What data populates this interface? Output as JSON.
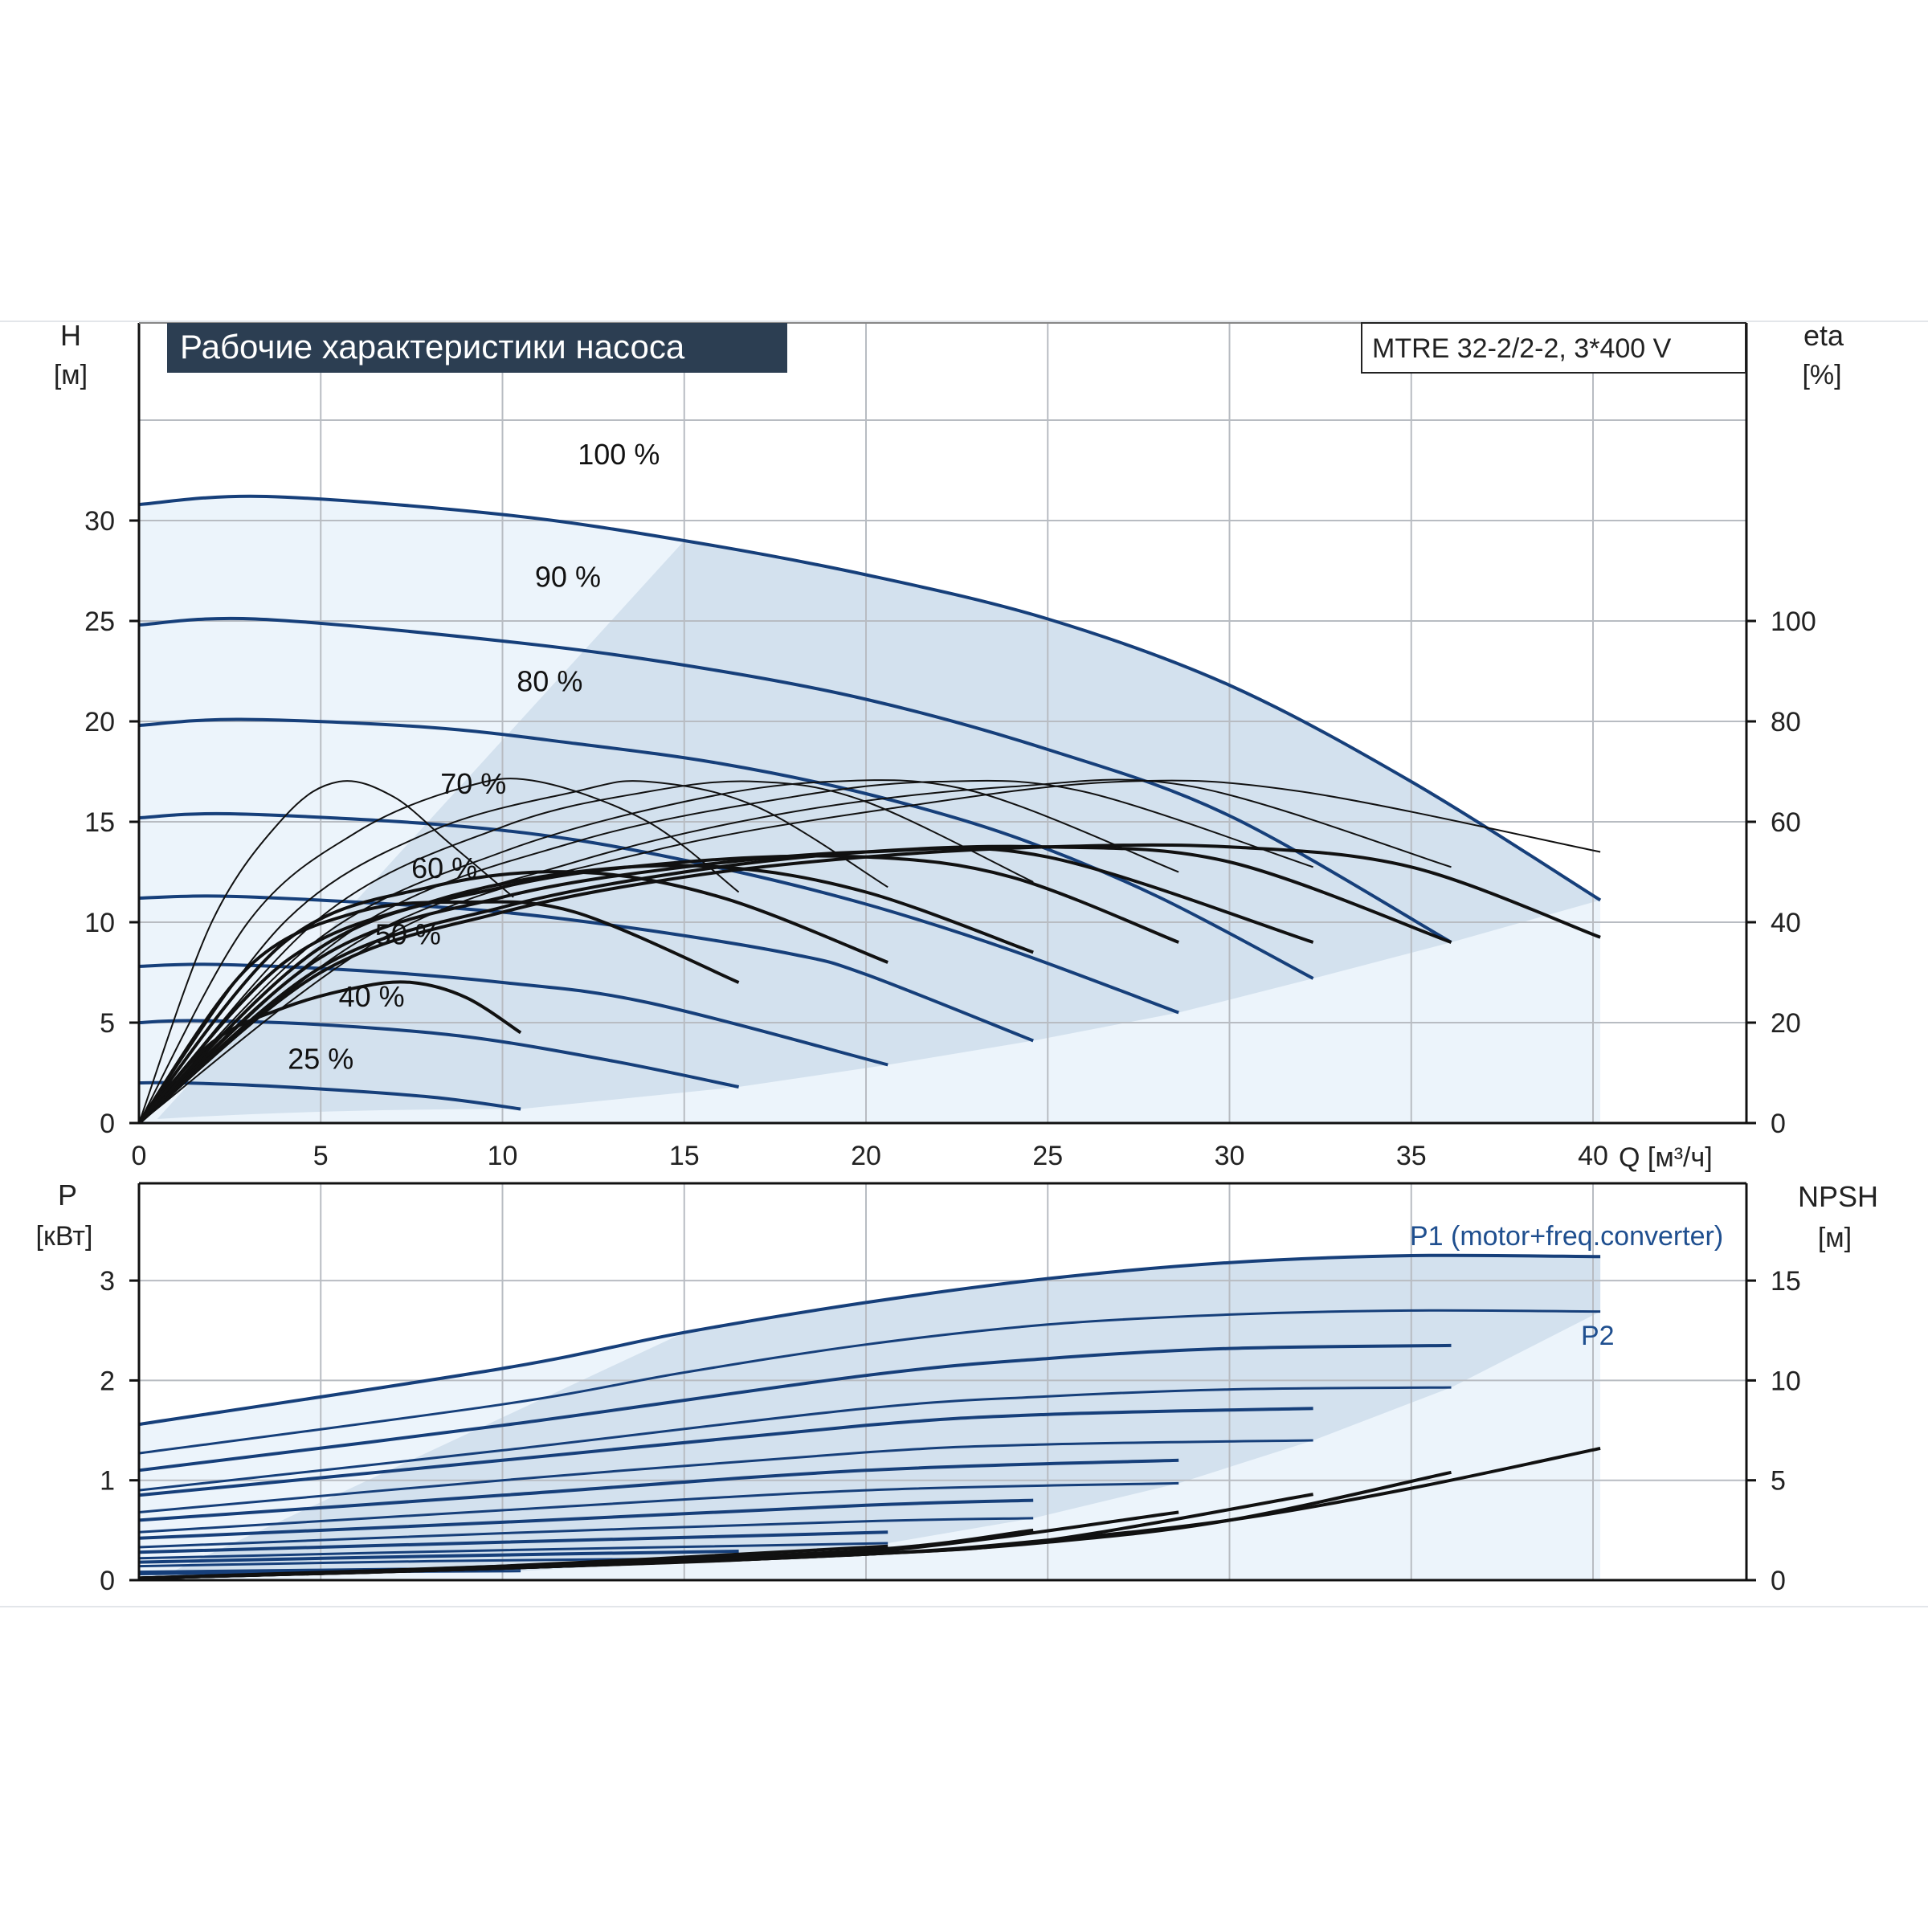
{
  "title": "Рабочие характеристики насоса",
  "model": "MTRE 32-2/2-2, 3*400 V",
  "colors": {
    "curve_blue": "#163f7a",
    "envelope_fill": "#d3e1ee",
    "light_fill": "#ecf4fb",
    "title_bg": "#2c3e52",
    "grid": "#b8bcc2",
    "efficiency": "#111111"
  },
  "chart_data": [
    {
      "name": "head",
      "type": "line",
      "x_label_right": "Q [м³/ч]",
      "y_left_label": [
        "H",
        "[м]"
      ],
      "y_right_label": [
        "eta",
        "[%]"
      ],
      "xlim": [
        0,
        44
      ],
      "ylim_left": [
        0,
        36
      ],
      "ylim_right": [
        0,
        140
      ],
      "x_ticks": [
        0,
        5,
        10,
        15,
        20,
        25,
        30,
        35,
        40
      ],
      "x_tick_labels": [
        "0",
        "5",
        "10",
        "15",
        "20",
        "25",
        "30",
        "35",
        "40"
      ],
      "y_left_ticks": [
        0,
        5,
        10,
        15,
        20,
        25,
        30
      ],
      "y_left_tick_labels": [
        "0",
        "5",
        "10",
        "15",
        "20",
        "25",
        "30"
      ],
      "y_right_ticks": [
        0,
        20,
        40,
        60,
        80,
        100
      ],
      "y_right_tick_labels": [
        "0",
        "20",
        "40",
        "60",
        "80",
        "100"
      ],
      "speed_labels": [
        "100 %",
        "90 %",
        "80 %",
        "70 %",
        "60 %",
        "50 %",
        "40 %",
        "25 %"
      ],
      "head_series": [
        {
          "speed": 100,
          "label": "100 %",
          "x": [
            0,
            3.5,
            10,
            15,
            20,
            25,
            30,
            35,
            40.2
          ],
          "y": [
            30.8,
            31.2,
            30.3,
            29.0,
            27.3,
            25.1,
            21.8,
            17.0,
            11.1
          ]
        },
        {
          "speed": 90,
          "label": "90 %",
          "x": [
            0,
            3.2,
            10,
            15,
            20,
            25,
            30,
            36.1
          ],
          "y": [
            24.8,
            25.1,
            24.0,
            22.8,
            21.1,
            18.6,
            15.3,
            9.0
          ]
        },
        {
          "speed": 80,
          "label": "80 %",
          "x": [
            0,
            2.8,
            8,
            12,
            16,
            20,
            24,
            28,
            32.3
          ],
          "y": [
            19.8,
            20.1,
            19.7,
            18.9,
            17.9,
            16.4,
            14.3,
            11.3,
            7.2
          ]
        },
        {
          "speed": 70,
          "label": "70 %",
          "x": [
            0,
            2.5,
            8,
            12,
            16,
            20,
            24,
            28.6
          ],
          "y": [
            15.2,
            15.4,
            14.9,
            14.1,
            12.7,
            10.9,
            8.6,
            5.5
          ]
        },
        {
          "speed": 60,
          "label": "60 %",
          "x": [
            0,
            2.2,
            6,
            10,
            14,
            18,
            20,
            24.6
          ],
          "y": [
            11.2,
            11.3,
            11.0,
            10.5,
            9.6,
            8.4,
            7.4,
            4.1
          ]
        },
        {
          "speed": 50,
          "label": "50 %",
          "x": [
            0,
            2.0,
            6,
            10,
            14,
            20.6
          ],
          "y": [
            7.8,
            7.9,
            7.6,
            7.0,
            6.0,
            2.9
          ]
        },
        {
          "speed": 40,
          "label": "40 %",
          "x": [
            0,
            1.5,
            5,
            9,
            13,
            16.5
          ],
          "y": [
            5.0,
            5.1,
            4.9,
            4.3,
            3.1,
            1.8
          ]
        },
        {
          "speed": 25,
          "label": "25 %",
          "x": [
            0,
            1.2,
            4,
            8,
            10.5
          ],
          "y": [
            2.0,
            2.0,
            1.8,
            1.3,
            0.7
          ]
        }
      ],
      "efficiency_series": [
        {
          "speed": 100,
          "x": [
            0,
            5,
            10,
            15,
            20,
            25,
            30,
            35,
            40.2
          ],
          "y": [
            0,
            30,
            42,
            49,
            53,
            55,
            55,
            51,
            37
          ]
        },
        {
          "speed": 90,
          "x": [
            0,
            5,
            10,
            15,
            20,
            25,
            30,
            36.1
          ],
          "y": [
            0,
            31,
            43,
            50,
            54,
            55,
            52,
            36
          ]
        },
        {
          "speed": 80,
          "x": [
            0,
            5,
            10,
            15,
            20,
            25,
            32.3
          ],
          "y": [
            0,
            33,
            45,
            51,
            54,
            53,
            36
          ]
        },
        {
          "speed": 70,
          "x": [
            0,
            5,
            10,
            15,
            20,
            24,
            28.6
          ],
          "y": [
            0,
            35,
            47,
            52,
            53,
            49,
            36
          ]
        },
        {
          "speed": 60,
          "x": [
            0,
            4,
            8,
            12,
            16,
            20,
            24.6
          ],
          "y": [
            0,
            32,
            44,
            50,
            51,
            46,
            34
          ]
        },
        {
          "speed": 50,
          "x": [
            0,
            4,
            8,
            12,
            16,
            20.6
          ],
          "y": [
            0,
            36,
            47,
            50,
            45,
            32
          ]
        },
        {
          "speed": 40,
          "x": [
            0,
            3,
            6,
            9,
            12,
            16.5
          ],
          "y": [
            0,
            31,
            42,
            44,
            42,
            28
          ]
        },
        {
          "speed": 25,
          "x": [
            0,
            2,
            4,
            6,
            7.5,
            9,
            10.5
          ],
          "y": [
            0,
            16,
            23,
            27,
            28,
            25,
            18
          ]
        }
      ],
      "efficiency_thin_series": [
        {
          "x": [
            0,
            2,
            4,
            5.5,
            7,
            8.5,
            10.3
          ],
          "y": [
            0,
            40,
            61,
            68,
            65,
            56,
            45
          ]
        },
        {
          "x": [
            0,
            3,
            6,
            9,
            11,
            14,
            16.5
          ],
          "y": [
            0,
            40,
            58,
            67,
            68,
            60,
            46
          ]
        },
        {
          "x": [
            0,
            4,
            8,
            12,
            14,
            17,
            20.6
          ],
          "y": [
            0,
            40,
            58,
            66,
            68,
            63,
            47
          ]
        },
        {
          "x": [
            0,
            5,
            10,
            14,
            17,
            20,
            24.6
          ],
          "y": [
            0,
            41,
            59,
            66,
            68,
            64,
            48
          ]
        },
        {
          "x": [
            0,
            5,
            10,
            15,
            19,
            23,
            28.6
          ],
          "y": [
            0,
            37,
            54,
            64,
            68,
            66,
            50
          ]
        },
        {
          "x": [
            0,
            6,
            12,
            18,
            22,
            26,
            32.3
          ],
          "y": [
            0,
            39,
            56,
            65,
            68,
            66,
            51
          ]
        },
        {
          "x": [
            0,
            6,
            12,
            18,
            24,
            29,
            36.1
          ],
          "y": [
            0,
            36,
            52,
            62,
            67,
            67,
            51
          ]
        },
        {
          "x": [
            0,
            7,
            14,
            21,
            27,
            32,
            40.2
          ],
          "y": [
            0,
            38,
            54,
            63,
            68,
            66,
            54
          ]
        }
      ]
    },
    {
      "name": "power",
      "type": "line",
      "y_left_label": [
        "P",
        "[кВт]"
      ],
      "y_right_label": [
        "NPSH",
        "[м]"
      ],
      "series_labels": [
        "P1 (motor+freq.converter)",
        "P2"
      ],
      "xlim": [
        0,
        44
      ],
      "ylim_left": [
        0,
        3.5
      ],
      "ylim_right": [
        0,
        17.5
      ],
      "x_ticks": [
        0,
        5,
        10,
        15,
        20,
        25,
        30,
        35,
        40
      ],
      "y_left_ticks": [
        0,
        1,
        2,
        3
      ],
      "y_left_tick_labels": [
        "0",
        "1",
        "2",
        "3"
      ],
      "y_right_ticks": [
        0,
        5,
        10,
        15
      ],
      "y_right_tick_labels": [
        "0",
        "5",
        "10",
        "15"
      ],
      "p1_series": [
        {
          "speed": 100,
          "x": [
            0,
            10,
            15,
            20,
            25,
            30,
            35,
            40.2
          ],
          "y": [
            1.56,
            2.12,
            2.48,
            2.78,
            3.02,
            3.18,
            3.25,
            3.24
          ]
        },
        {
          "speed": 90,
          "x": [
            0,
            10,
            20,
            25,
            30,
            36.1
          ],
          "y": [
            1.1,
            1.55,
            2.05,
            2.22,
            2.32,
            2.35
          ]
        },
        {
          "speed": 80,
          "x": [
            0,
            10,
            20,
            25,
            32.3
          ],
          "y": [
            0.85,
            1.2,
            1.55,
            1.66,
            1.72
          ]
        },
        {
          "speed": 70,
          "x": [
            0,
            10,
            20,
            28.6
          ],
          "y": [
            0.6,
            0.85,
            1.1,
            1.2
          ]
        },
        {
          "speed": 60,
          "x": [
            0,
            10,
            20,
            24.6
          ],
          "y": [
            0.42,
            0.58,
            0.75,
            0.8
          ]
        },
        {
          "speed": 50,
          "x": [
            0,
            10,
            20.6
          ],
          "y": [
            0.28,
            0.38,
            0.48
          ]
        },
        {
          "speed": 40,
          "x": [
            0,
            8,
            16.5
          ],
          "y": [
            0.18,
            0.24,
            0.29
          ]
        },
        {
          "speed": 25,
          "x": [
            0,
            5,
            10.5
          ],
          "y": [
            0.08,
            0.1,
            0.12
          ]
        }
      ],
      "p2_series": [
        {
          "speed": 100,
          "x": [
            0,
            10,
            15,
            20,
            25,
            30,
            35,
            40.2
          ],
          "y": [
            1.27,
            1.76,
            2.08,
            2.36,
            2.56,
            2.66,
            2.7,
            2.69
          ]
        },
        {
          "speed": 90,
          "x": [
            0,
            10,
            20,
            25,
            30,
            36.1
          ],
          "y": [
            0.9,
            1.3,
            1.72,
            1.84,
            1.91,
            1.93
          ]
        },
        {
          "speed": 80,
          "x": [
            0,
            10,
            20,
            25,
            32.3
          ],
          "y": [
            0.68,
            1.0,
            1.28,
            1.36,
            1.4
          ]
        },
        {
          "speed": 70,
          "x": [
            0,
            10,
            20,
            28.6
          ],
          "y": [
            0.48,
            0.7,
            0.9,
            0.97
          ]
        },
        {
          "speed": 60,
          "x": [
            0,
            10,
            20,
            24.6
          ],
          "y": [
            0.33,
            0.47,
            0.59,
            0.62
          ]
        },
        {
          "speed": 50,
          "x": [
            0,
            10,
            20.6
          ],
          "y": [
            0.22,
            0.3,
            0.37
          ]
        },
        {
          "speed": 40,
          "x": [
            0,
            8,
            16.5
          ],
          "y": [
            0.14,
            0.19,
            0.22
          ]
        },
        {
          "speed": 25,
          "x": [
            0,
            5,
            10.5
          ],
          "y": [
            0.06,
            0.08,
            0.09
          ]
        }
      ],
      "npsh_series": [
        {
          "speed": 100,
          "x": [
            0,
            10,
            20,
            25,
            30,
            35,
            40.2
          ],
          "y": [
            0.1,
            0.6,
            1.3,
            2.0,
            3.0,
            4.6,
            6.6
          ]
        },
        {
          "speed": 90,
          "x": [
            0,
            10,
            20,
            25,
            30,
            36.1
          ],
          "y": [
            0.1,
            0.6,
            1.3,
            1.9,
            3.0,
            5.4
          ]
        },
        {
          "speed": 80,
          "x": [
            0,
            10,
            20,
            25,
            32.3
          ],
          "y": [
            0.1,
            0.6,
            1.3,
            2.0,
            4.3
          ]
        },
        {
          "speed": 70,
          "x": [
            0,
            10,
            20,
            28.6
          ],
          "y": [
            0.1,
            0.6,
            1.4,
            3.4
          ]
        },
        {
          "speed": 60,
          "x": [
            0,
            10,
            20,
            24.6
          ],
          "y": [
            0.1,
            0.7,
            1.5,
            2.5
          ]
        },
        {
          "speed": 50,
          "x": [
            0,
            10,
            20.6
          ],
          "y": [
            0.1,
            0.7,
            1.7
          ]
        },
        {
          "speed": 40,
          "x": [
            0,
            8,
            16.5
          ],
          "y": [
            0.1,
            0.5,
            1.1
          ]
        }
      ]
    }
  ]
}
